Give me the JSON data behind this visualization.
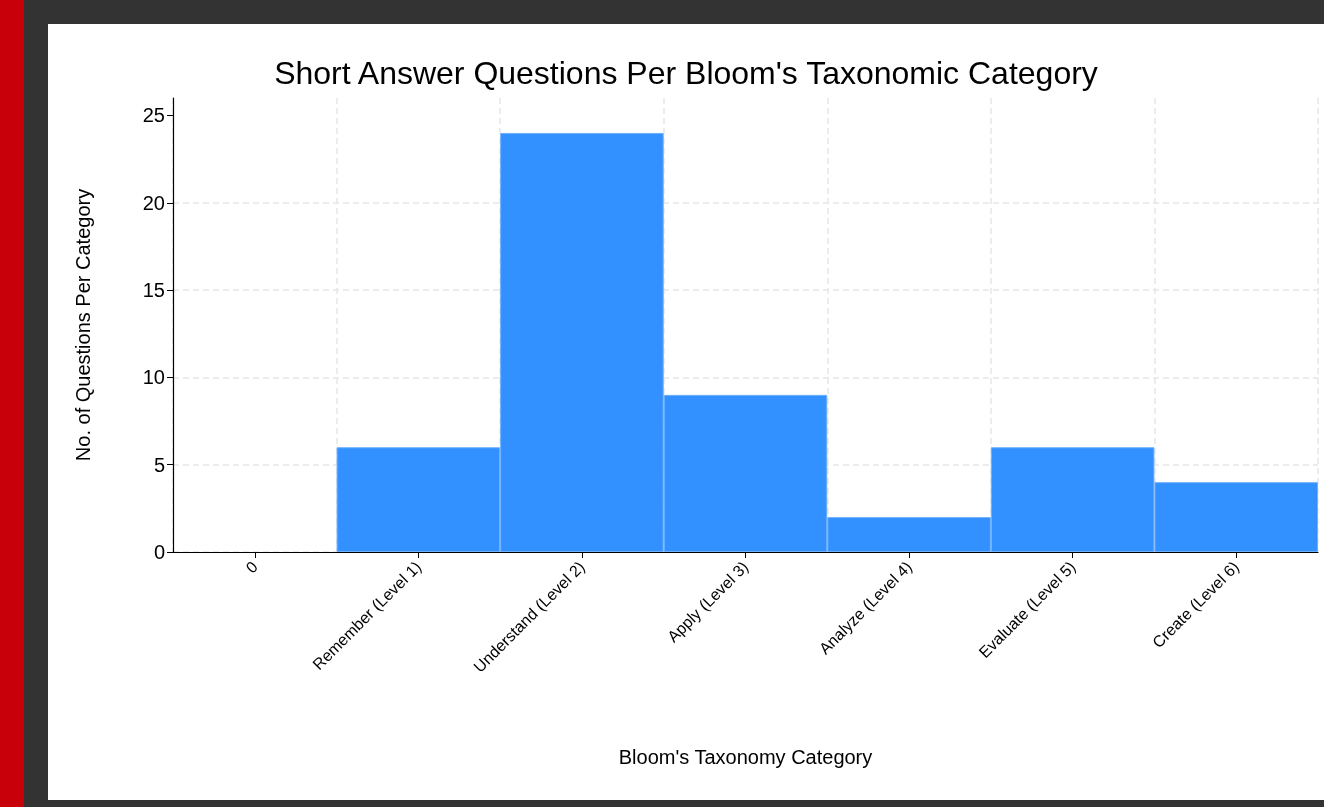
{
  "chart_data": {
    "type": "bar",
    "title": "Short Answer Questions Per Bloom's Taxonomic Category",
    "xlabel": "Bloom's Taxonomy Category",
    "ylabel": "No. of Questions Per Category",
    "categories": [
      "0",
      "Remember (Level 1)",
      "Understand (Level 2)",
      "Apply (Level 3)",
      "Analyze (Level 4)",
      "Evaluate (Level 5)",
      "Create (Level 6)"
    ],
    "values": [
      null,
      6,
      24,
      9,
      2,
      6,
      4
    ],
    "color": "#3391ff",
    "ylim": [
      0,
      26
    ],
    "yticks": [
      0,
      5,
      10,
      15,
      20,
      25
    ],
    "grid": true
  }
}
